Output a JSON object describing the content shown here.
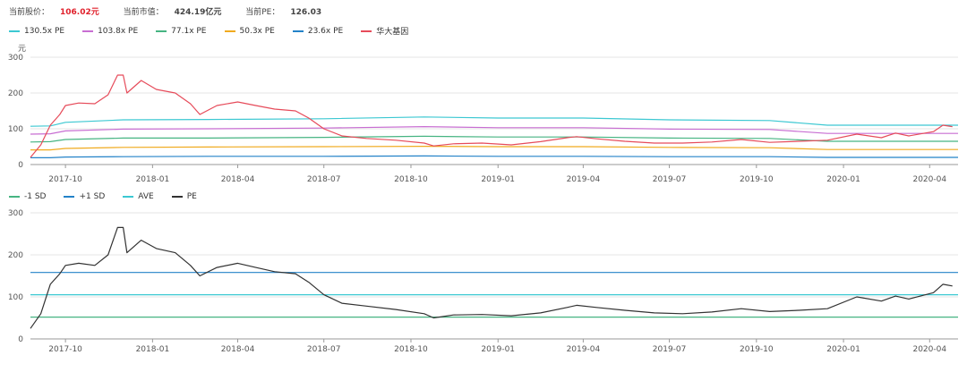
{
  "header": {
    "price_label": "当前股价：",
    "price_value": "106.02元",
    "cap_label": "当前市值：",
    "cap_value": "424.19亿元",
    "pe_label": "当前PE：",
    "pe_value": "126.03"
  },
  "colors": {
    "pe130": "#3cc8d2",
    "pe103": "#c86ed2",
    "pe77": "#46b482",
    "pe50": "#f0aa1e",
    "pe23": "#2382c8",
    "price": "#e64b5a",
    "minus_sd": "#46b482",
    "plus_sd": "#2382c8",
    "ave": "#3cc8d2",
    "pe": "#323232",
    "grid": "#e4e4e4",
    "axis": "#999999"
  },
  "chart_data": [
    {
      "type": "line",
      "title": "",
      "ylabel": "元",
      "ylim": [
        0,
        300
      ],
      "yticks": [
        "0",
        "100",
        "200",
        "300"
      ],
      "xticks": [
        "2017-10",
        "2018-01",
        "2018-04",
        "2018-07",
        "2018-10",
        "2019-01",
        "2019-04",
        "2019-07",
        "2019-10",
        "2020-01",
        "2020-04"
      ],
      "xrange": [
        "2017-08-25",
        "2020-05-01"
      ],
      "grid": true,
      "legend_position": "top-left",
      "series": [
        {
          "name": "130.5x PE",
          "color_key": "pe130",
          "points": [
            [
              "2017-08-25",
              107
            ],
            [
              "2017-09-15",
              108
            ],
            [
              "2017-10-01",
              118
            ],
            [
              "2017-12-01",
              125
            ],
            [
              "2018-03-01",
              126
            ],
            [
              "2018-07-01",
              128
            ],
            [
              "2018-10-15",
              133
            ],
            [
              "2019-01-01",
              130
            ],
            [
              "2019-04-01",
              130
            ],
            [
              "2019-07-01",
              125
            ],
            [
              "2019-10-15",
              123
            ],
            [
              "2019-12-15",
              110
            ],
            [
              "2020-01-01",
              110
            ],
            [
              "2020-05-01",
              110
            ]
          ]
        },
        {
          "name": "103.8x PE",
          "color_key": "pe103",
          "points": [
            [
              "2017-08-25",
              85
            ],
            [
              "2017-09-15",
              86
            ],
            [
              "2017-10-01",
              94
            ],
            [
              "2017-12-01",
              99
            ],
            [
              "2018-03-01",
              100
            ],
            [
              "2018-07-01",
              102
            ],
            [
              "2018-10-15",
              106
            ],
            [
              "2019-01-01",
              103
            ],
            [
              "2019-04-01",
              103
            ],
            [
              "2019-07-01",
              99
            ],
            [
              "2019-10-15",
              98
            ],
            [
              "2019-12-15",
              87
            ],
            [
              "2020-01-01",
              87
            ],
            [
              "2020-05-01",
              87
            ]
          ]
        },
        {
          "name": "77.1x PE",
          "color_key": "pe77",
          "points": [
            [
              "2017-08-25",
              63
            ],
            [
              "2017-09-15",
              64
            ],
            [
              "2017-10-01",
              70
            ],
            [
              "2017-12-01",
              74
            ],
            [
              "2018-03-01",
              74
            ],
            [
              "2018-07-01",
              76
            ],
            [
              "2018-10-15",
              79
            ],
            [
              "2019-01-01",
              77
            ],
            [
              "2019-04-01",
              77
            ],
            [
              "2019-07-01",
              74
            ],
            [
              "2019-10-15",
              73
            ],
            [
              "2019-12-15",
              65
            ],
            [
              "2020-01-01",
              65
            ],
            [
              "2020-05-01",
              65
            ]
          ]
        },
        {
          "name": "50.3x PE",
          "color_key": "pe50",
          "points": [
            [
              "2017-08-25",
              41
            ],
            [
              "2017-09-15",
              41
            ],
            [
              "2017-10-01",
              45
            ],
            [
              "2017-12-01",
              48
            ],
            [
              "2018-03-01",
              49
            ],
            [
              "2018-07-01",
              50
            ],
            [
              "2018-10-15",
              51
            ],
            [
              "2019-01-01",
              50
            ],
            [
              "2019-04-01",
              50
            ],
            [
              "2019-07-01",
              48
            ],
            [
              "2019-10-15",
              47
            ],
            [
              "2019-12-15",
              42
            ],
            [
              "2020-01-01",
              42
            ],
            [
              "2020-05-01",
              42
            ]
          ]
        },
        {
          "name": "23.6x PE",
          "color_key": "pe23",
          "points": [
            [
              "2017-08-25",
              19
            ],
            [
              "2017-09-15",
              19
            ],
            [
              "2017-10-01",
              21
            ],
            [
              "2017-12-01",
              22
            ],
            [
              "2018-03-01",
              23
            ],
            [
              "2018-07-01",
              23
            ],
            [
              "2018-10-15",
              24
            ],
            [
              "2019-01-01",
              23
            ],
            [
              "2019-04-01",
              23
            ],
            [
              "2019-07-01",
              22
            ],
            [
              "2019-10-15",
              22
            ],
            [
              "2019-12-15",
              20
            ],
            [
              "2020-01-01",
              20
            ],
            [
              "2020-05-01",
              20
            ]
          ]
        },
        {
          "name": "华大基因",
          "color_key": "price",
          "points": [
            [
              "2017-08-25",
              20
            ],
            [
              "2017-09-05",
              55
            ],
            [
              "2017-09-15",
              110
            ],
            [
              "2017-09-25",
              140
            ],
            [
              "2017-10-01",
              165
            ],
            [
              "2017-10-15",
              172
            ],
            [
              "2017-11-01",
              170
            ],
            [
              "2017-11-15",
              195
            ],
            [
              "2017-11-25",
              250
            ],
            [
              "2017-12-01",
              250
            ],
            [
              "2017-12-05",
              200
            ],
            [
              "2017-12-20",
              235
            ],
            [
              "2018-01-05",
              210
            ],
            [
              "2018-01-25",
              200
            ],
            [
              "2018-02-10",
              170
            ],
            [
              "2018-02-20",
              140
            ],
            [
              "2018-03-10",
              165
            ],
            [
              "2018-04-01",
              175
            ],
            [
              "2018-04-20",
              165
            ],
            [
              "2018-05-10",
              155
            ],
            [
              "2018-06-01",
              150
            ],
            [
              "2018-06-15",
              130
            ],
            [
              "2018-07-01",
              100
            ],
            [
              "2018-07-20",
              80
            ],
            [
              "2018-08-15",
              73
            ],
            [
              "2018-09-15",
              68
            ],
            [
              "2018-10-15",
              60
            ],
            [
              "2018-10-25",
              52
            ],
            [
              "2018-11-15",
              58
            ],
            [
              "2018-12-15",
              60
            ],
            [
              "2019-01-15",
              55
            ],
            [
              "2019-02-15",
              64
            ],
            [
              "2019-03-15",
              75
            ],
            [
              "2019-03-25",
              78
            ],
            [
              "2019-04-15",
              72
            ],
            [
              "2019-05-15",
              65
            ],
            [
              "2019-06-15",
              60
            ],
            [
              "2019-07-15",
              60
            ],
            [
              "2019-08-15",
              63
            ],
            [
              "2019-09-15",
              70
            ],
            [
              "2019-10-15",
              62
            ],
            [
              "2019-11-15",
              65
            ],
            [
              "2019-12-15",
              68
            ],
            [
              "2020-01-15",
              85
            ],
            [
              "2020-02-10",
              75
            ],
            [
              "2020-02-25",
              88
            ],
            [
              "2020-03-10",
              80
            ],
            [
              "2020-04-05",
              92
            ],
            [
              "2020-04-15",
              110
            ],
            [
              "2020-04-25",
              106
            ]
          ]
        }
      ]
    },
    {
      "type": "line",
      "title": "",
      "ylim": [
        0,
        300
      ],
      "yticks": [
        "0",
        "100",
        "200",
        "300"
      ],
      "xticks": [
        "2017-10",
        "2018-01",
        "2018-04",
        "2018-07",
        "2018-10",
        "2019-01",
        "2019-04",
        "2019-07",
        "2019-10",
        "2020-01",
        "2020-04"
      ],
      "xrange": [
        "2017-08-25",
        "2020-05-01"
      ],
      "grid": true,
      "legend_position": "top-left",
      "series": [
        {
          "name": "-1 SD",
          "color_key": "minus_sd",
          "points": [
            [
              "2017-08-25",
              52
            ],
            [
              "2020-05-01",
              52
            ]
          ]
        },
        {
          "name": "+1 SD",
          "color_key": "plus_sd",
          "points": [
            [
              "2017-08-25",
              158
            ],
            [
              "2020-05-01",
              158
            ]
          ]
        },
        {
          "name": "AVE",
          "color_key": "ave",
          "points": [
            [
              "2017-08-25",
              105
            ],
            [
              "2020-05-01",
              105
            ]
          ]
        },
        {
          "name": "PE",
          "color_key": "pe",
          "points": [
            [
              "2017-08-25",
              25
            ],
            [
              "2017-09-05",
              60
            ],
            [
              "2017-09-15",
              130
            ],
            [
              "2017-09-25",
              155
            ],
            [
              "2017-10-01",
              175
            ],
            [
              "2017-10-15",
              180
            ],
            [
              "2017-11-01",
              175
            ],
            [
              "2017-11-15",
              200
            ],
            [
              "2017-11-25",
              265
            ],
            [
              "2017-12-01",
              265
            ],
            [
              "2017-12-05",
              205
            ],
            [
              "2017-12-20",
              235
            ],
            [
              "2018-01-05",
              215
            ],
            [
              "2018-01-25",
              205
            ],
            [
              "2018-02-10",
              175
            ],
            [
              "2018-02-20",
              150
            ],
            [
              "2018-03-10",
              170
            ],
            [
              "2018-04-01",
              180
            ],
            [
              "2018-04-20",
              170
            ],
            [
              "2018-05-10",
              160
            ],
            [
              "2018-06-01",
              155
            ],
            [
              "2018-06-15",
              135
            ],
            [
              "2018-07-01",
              105
            ],
            [
              "2018-07-20",
              85
            ],
            [
              "2018-08-15",
              78
            ],
            [
              "2018-09-15",
              70
            ],
            [
              "2018-10-15",
              60
            ],
            [
              "2018-10-25",
              50
            ],
            [
              "2018-11-15",
              57
            ],
            [
              "2018-12-15",
              58
            ],
            [
              "2019-01-15",
              55
            ],
            [
              "2019-02-15",
              62
            ],
            [
              "2019-03-15",
              75
            ],
            [
              "2019-03-25",
              80
            ],
            [
              "2019-04-15",
              75
            ],
            [
              "2019-05-15",
              68
            ],
            [
              "2019-06-15",
              62
            ],
            [
              "2019-07-15",
              60
            ],
            [
              "2019-08-15",
              64
            ],
            [
              "2019-09-15",
              72
            ],
            [
              "2019-10-15",
              65
            ],
            [
              "2019-11-15",
              68
            ],
            [
              "2019-12-15",
              72
            ],
            [
              "2020-01-15",
              100
            ],
            [
              "2020-02-10",
              90
            ],
            [
              "2020-02-25",
              102
            ],
            [
              "2020-03-10",
              95
            ],
            [
              "2020-04-05",
              110
            ],
            [
              "2020-04-15",
              130
            ],
            [
              "2020-04-25",
              126
            ]
          ]
        }
      ]
    }
  ]
}
